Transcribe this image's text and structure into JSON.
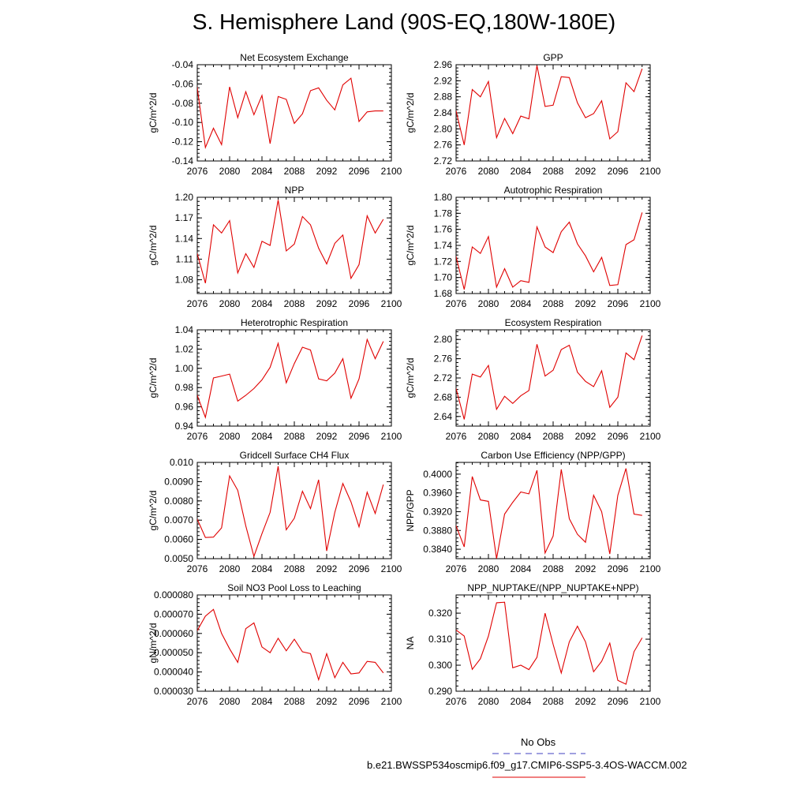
{
  "page": {
    "title": "S. Hemisphere Land (90S-EQ,180W-180E)",
    "legend": {
      "obs_label": "No Obs",
      "obs_color": "#4040c0",
      "model_label": "b.e21.BWSSP534oscmip6.f09_g17.CMIP6-SSP5-3.4OS-WACCM.002",
      "model_color": "#e00000"
    }
  },
  "chart_data": [
    {
      "type": "line",
      "title": "Net Ecosystem Exchange",
      "ylabel": "gC/m^2/d",
      "xlim": [
        2076,
        2100
      ],
      "ylim": [
        -0.14,
        -0.04
      ],
      "yticks": [
        "-0.14",
        "-0.12",
        "-0.10",
        "-0.08",
        "-0.06",
        "-0.04"
      ],
      "ytick_values": [
        -0.14,
        -0.12,
        -0.1,
        -0.08,
        -0.06,
        -0.04
      ],
      "x": [
        2075,
        2076,
        2077,
        2078,
        2079,
        2080,
        2081,
        2082,
        2083,
        2084,
        2085,
        2086,
        2087,
        2088,
        2089,
        2090,
        2091,
        2092,
        2093,
        2094,
        2095,
        2096,
        2097,
        2098,
        2099
      ],
      "values": [
        -0.079,
        -0.064,
        -0.126,
        -0.106,
        -0.123,
        -0.063,
        -0.095,
        -0.068,
        -0.092,
        -0.072,
        -0.122,
        -0.073,
        -0.076,
        -0.101,
        -0.091,
        -0.067,
        -0.064,
        -0.077,
        -0.087,
        -0.061,
        -0.054,
        -0.099,
        -0.089,
        -0.088,
        -0.088
      ]
    },
    {
      "type": "line",
      "title": "GPP",
      "ylabel": "gC/m^2/d",
      "xlim": [
        2076,
        2100
      ],
      "ylim": [
        2.72,
        2.96
      ],
      "yticks": [
        "2.72",
        "2.76",
        "2.80",
        "2.84",
        "2.88",
        "2.92",
        "2.96"
      ],
      "ytick_values": [
        2.72,
        2.76,
        2.8,
        2.84,
        2.88,
        2.92,
        2.96
      ],
      "x": [
        2075,
        2076,
        2077,
        2078,
        2079,
        2080,
        2081,
        2082,
        2083,
        2084,
        2085,
        2086,
        2087,
        2088,
        2089,
        2090,
        2091,
        2092,
        2093,
        2094,
        2095,
        2096,
        2097,
        2098,
        2099
      ],
      "values": [
        2.86,
        2.845,
        2.76,
        2.898,
        2.88,
        2.918,
        2.778,
        2.826,
        2.788,
        2.832,
        2.825,
        2.958,
        2.856,
        2.859,
        2.93,
        2.928,
        2.865,
        2.828,
        2.838,
        2.87,
        2.775,
        2.793,
        2.915,
        2.893,
        2.95
      ]
    },
    {
      "type": "line",
      "title": "NPP",
      "ylabel": "gC/m^2/d",
      "xlim": [
        2076,
        2100
      ],
      "ylim": [
        1.06,
        1.2
      ],
      "yticks": [
        "1.08",
        "1.11",
        "1.14",
        "1.17",
        "1.20"
      ],
      "ytick_values": [
        1.08,
        1.11,
        1.14,
        1.17,
        1.2
      ],
      "x": [
        2075,
        2076,
        2077,
        2078,
        2079,
        2080,
        2081,
        2082,
        2083,
        2084,
        2085,
        2086,
        2087,
        2088,
        2089,
        2090,
        2091,
        2092,
        2093,
        2094,
        2095,
        2096,
        2097,
        2098,
        2099
      ],
      "values": [
        1.13,
        1.118,
        1.075,
        1.16,
        1.148,
        1.166,
        1.09,
        1.118,
        1.098,
        1.136,
        1.13,
        1.196,
        1.122,
        1.132,
        1.172,
        1.16,
        1.126,
        1.103,
        1.133,
        1.145,
        1.082,
        1.102,
        1.173,
        1.148,
        1.168
      ]
    },
    {
      "type": "line",
      "title": "Autotrophic Respiration",
      "ylabel": "gC/m^2/d",
      "xlim": [
        2076,
        2100
      ],
      "ylim": [
        1.68,
        1.8
      ],
      "yticks": [
        "1.68",
        "1.70",
        "1.72",
        "1.74",
        "1.76",
        "1.78",
        "1.80"
      ],
      "ytick_values": [
        1.68,
        1.7,
        1.72,
        1.74,
        1.76,
        1.78,
        1.8
      ],
      "x": [
        2075,
        2076,
        2077,
        2078,
        2079,
        2080,
        2081,
        2082,
        2083,
        2084,
        2085,
        2086,
        2087,
        2088,
        2089,
        2090,
        2091,
        2092,
        2093,
        2094,
        2095,
        2096,
        2097,
        2098,
        2099
      ],
      "values": [
        1.73,
        1.726,
        1.685,
        1.738,
        1.73,
        1.751,
        1.688,
        1.711,
        1.688,
        1.696,
        1.694,
        1.763,
        1.738,
        1.731,
        1.757,
        1.769,
        1.742,
        1.727,
        1.707,
        1.725,
        1.69,
        1.691,
        1.741,
        1.747,
        1.781
      ]
    },
    {
      "type": "line",
      "title": "Heterotrophic Respiration",
      "ylabel": "gC/m^2/d",
      "xlim": [
        2076,
        2100
      ],
      "ylim": [
        0.94,
        1.04
      ],
      "yticks": [
        "0.94",
        "0.96",
        "0.98",
        "1.00",
        "1.02",
        "1.04"
      ],
      "ytick_values": [
        0.94,
        0.96,
        0.98,
        1.0,
        1.02,
        1.04
      ],
      "x": [
        2075,
        2076,
        2077,
        2078,
        2079,
        2080,
        2081,
        2082,
        2083,
        2084,
        2085,
        2086,
        2087,
        2088,
        2089,
        2090,
        2091,
        2092,
        2093,
        2094,
        2095,
        2096,
        2097,
        2098,
        2099
      ],
      "values": [
        0.985,
        0.972,
        0.949,
        0.99,
        0.992,
        0.994,
        0.966,
        0.972,
        0.979,
        0.988,
        1.001,
        1.026,
        0.985,
        1.005,
        1.022,
        1.019,
        0.989,
        0.987,
        0.995,
        1.01,
        0.969,
        0.989,
        1.03,
        1.01,
        1.028
      ]
    },
    {
      "type": "line",
      "title": "Ecosystem Respiration",
      "ylabel": "gC/m^2/d",
      "xlim": [
        2076,
        2100
      ],
      "ylim": [
        2.62,
        2.82
      ],
      "yticks": [
        "2.64",
        "2.68",
        "2.72",
        "2.76",
        "2.80"
      ],
      "ytick_values": [
        2.64,
        2.68,
        2.72,
        2.76,
        2.8
      ],
      "x": [
        2075,
        2076,
        2077,
        2078,
        2079,
        2080,
        2081,
        2082,
        2083,
        2084,
        2085,
        2086,
        2087,
        2088,
        2089,
        2090,
        2091,
        2092,
        2093,
        2094,
        2095,
        2096,
        2097,
        2098,
        2099
      ],
      "values": [
        2.71,
        2.698,
        2.634,
        2.728,
        2.722,
        2.746,
        2.655,
        2.682,
        2.667,
        2.683,
        2.694,
        2.79,
        2.724,
        2.736,
        2.779,
        2.788,
        2.732,
        2.713,
        2.702,
        2.735,
        2.659,
        2.68,
        2.772,
        2.758,
        2.808
      ]
    },
    {
      "type": "line",
      "title": "Gridcell Surface CH4 Flux",
      "ylabel": "gC/m^2/d",
      "xlim": [
        2076,
        2100
      ],
      "ylim": [
        0.005,
        0.01
      ],
      "yticks": [
        "0.0050",
        "0.0060",
        "0.0070",
        "0.0080",
        "0.0090",
        "0.010"
      ],
      "ytick_values": [
        0.005,
        0.006,
        0.007,
        0.008,
        0.009,
        0.01
      ],
      "x": [
        2075,
        2076,
        2077,
        2078,
        2079,
        2080,
        2081,
        2082,
        2083,
        2084,
        2085,
        2086,
        2087,
        2088,
        2089,
        2090,
        2091,
        2092,
        2093,
        2094,
        2095,
        2096,
        2097,
        2098,
        2099
      ],
      "values": [
        0.0075,
        0.00705,
        0.0061,
        0.00612,
        0.0066,
        0.0093,
        0.00855,
        0.0067,
        0.00512,
        0.0063,
        0.0074,
        0.0098,
        0.0065,
        0.0071,
        0.0085,
        0.0076,
        0.0091,
        0.0054,
        0.0074,
        0.0089,
        0.00795,
        0.00665,
        0.00845,
        0.00735,
        0.00885
      ]
    },
    {
      "type": "line",
      "title": "Carbon Use Efficiency (NPP/GPP)",
      "ylabel": "NPP/GPP",
      "xlim": [
        2076,
        2100
      ],
      "ylim": [
        0.382,
        0.4025
      ],
      "yticks": [
        "0.3840",
        "0.3880",
        "0.3920",
        "0.3960",
        "0.4000"
      ],
      "ytick_values": [
        0.384,
        0.388,
        0.392,
        0.396,
        0.4
      ],
      "x": [
        2075,
        2076,
        2077,
        2078,
        2079,
        2080,
        2081,
        2082,
        2083,
        2084,
        2085,
        2086,
        2087,
        2088,
        2089,
        2090,
        2091,
        2092,
        2093,
        2094,
        2095,
        2096,
        2097,
        2098,
        2099
      ],
      "values": [
        0.392,
        0.389,
        0.3845,
        0.3995,
        0.3945,
        0.3942,
        0.382,
        0.3915,
        0.394,
        0.3962,
        0.3958,
        0.4008,
        0.3832,
        0.3868,
        0.401,
        0.3905,
        0.3872,
        0.3855,
        0.3955,
        0.392,
        0.383,
        0.3955,
        0.4012,
        0.3915,
        0.3912
      ]
    },
    {
      "type": "line",
      "title": "Soil NO3 Pool Loss to Leaching",
      "ylabel": "gN/m^2/d",
      "xlim": [
        2076,
        2100
      ],
      "ylim": [
        3e-05,
        8e-05
      ],
      "yticks": [
        "0.000030",
        "0.000040",
        "0.000050",
        "0.000060",
        "0.000070",
        "0.000080"
      ],
      "ytick_values": [
        3e-05,
        4e-05,
        5e-05,
        6e-05,
        7e-05,
        8e-05
      ],
      "x": [
        2075,
        2076,
        2077,
        2078,
        2079,
        2080,
        2081,
        2082,
        2083,
        2084,
        2085,
        2086,
        2087,
        2088,
        2089,
        2090,
        2091,
        2092,
        2093,
        2094,
        2095,
        2096,
        2097,
        2098,
        2099
      ],
      "values": [
        5.8e-05,
        6.15e-05,
        6.9e-05,
        7.25e-05,
        6e-05,
        5.2e-05,
        4.5e-05,
        6.25e-05,
        6.55e-05,
        5.3e-05,
        5e-05,
        5.75e-05,
        5.1e-05,
        5.7e-05,
        5.05e-05,
        4.95e-05,
        3.6e-05,
        4.95e-05,
        3.7e-05,
        4.5e-05,
        3.9e-05,
        3.95e-05,
        4.55e-05,
        4.5e-05,
        3.95e-05
      ]
    },
    {
      "type": "line",
      "title": "NPP_NUPTAKE/(NPP_NUPTAKE+NPP)",
      "ylabel": "NA",
      "xlim": [
        2076,
        2100
      ],
      "ylim": [
        0.29,
        0.327
      ],
      "yticks": [
        "0.290",
        "0.300",
        "0.310",
        "0.320"
      ],
      "ytick_values": [
        0.29,
        0.3,
        0.31,
        0.32
      ],
      "x": [
        2075,
        2076,
        2077,
        2078,
        2079,
        2080,
        2081,
        2082,
        2083,
        2084,
        2085,
        2086,
        2087,
        2088,
        2089,
        2090,
        2091,
        2092,
        2093,
        2094,
        2095,
        2096,
        2097,
        2098,
        2099
      ],
      "values": [
        0.315,
        0.3135,
        0.3112,
        0.2984,
        0.3025,
        0.3112,
        0.324,
        0.3242,
        0.299,
        0.3,
        0.2983,
        0.303,
        0.32,
        0.308,
        0.297,
        0.309,
        0.315,
        0.309,
        0.2975,
        0.3015,
        0.3085,
        0.2942,
        0.2927,
        0.3052,
        0.3105
      ]
    }
  ]
}
